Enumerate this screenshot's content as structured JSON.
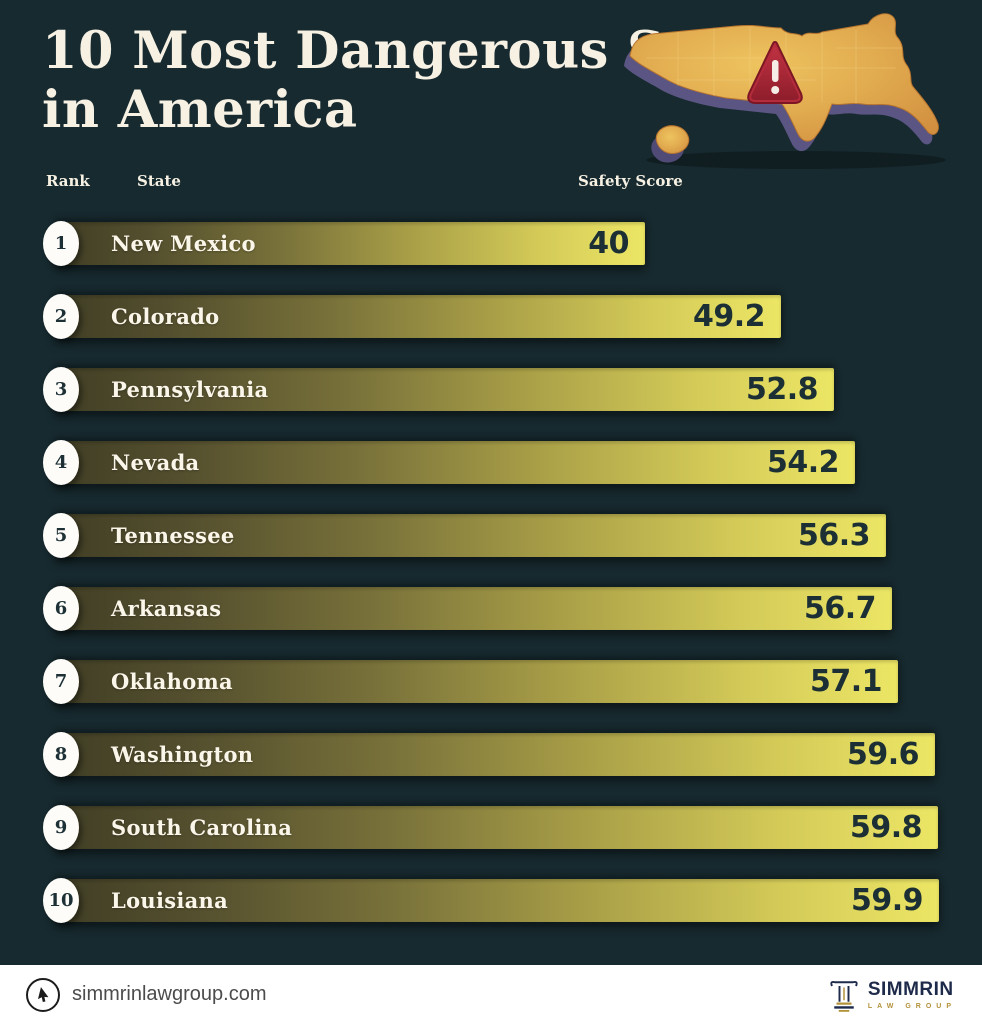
{
  "title": {
    "line1": "10 Most Dangerous States",
    "line2": "in America"
  },
  "columns": {
    "rank": "Rank",
    "state": "State",
    "score": "Safety Score"
  },
  "chart_data": {
    "type": "bar",
    "orientation": "horizontal",
    "title": "10 Most Dangerous States in America",
    "value_label": "Safety Score",
    "xlim": [
      0,
      60.3
    ],
    "ranks": [
      1,
      2,
      3,
      4,
      5,
      6,
      7,
      8,
      9,
      10
    ],
    "categories": [
      "New Mexico",
      "Colorado",
      "Pennsylvania",
      "Nevada",
      "Tennessee",
      "Arkansas",
      "Oklahoma",
      "Washington",
      "South Carolina",
      "Louisiana"
    ],
    "values": [
      40,
      49.2,
      52.8,
      54.2,
      56.3,
      56.7,
      57.1,
      59.6,
      59.8,
      59.9
    ],
    "bar_gradient": [
      "#403e25",
      "#ece665"
    ],
    "score_text_color": "#1b2f35",
    "legend": "none",
    "grid": false
  },
  "footer": {
    "website": "simmrinlawgroup.com",
    "logo_name": "SIMMRIN",
    "logo_subtitle": "LAW GROUP"
  },
  "colors": {
    "background": "#172a2f",
    "title_text": "#f7f1e4",
    "map_orange": "#dfa24b",
    "map_base_purple": "#5b5583",
    "warning_red": "#a32232",
    "footer_background": "#ffffff",
    "logo_navy": "#1e2a4a",
    "logo_gold": "#b3923a"
  },
  "icons": {
    "map": "usa-map-3d",
    "warning": "warning-triangle-icon",
    "cursor": "cursor-icon",
    "logo": "column-icon"
  }
}
